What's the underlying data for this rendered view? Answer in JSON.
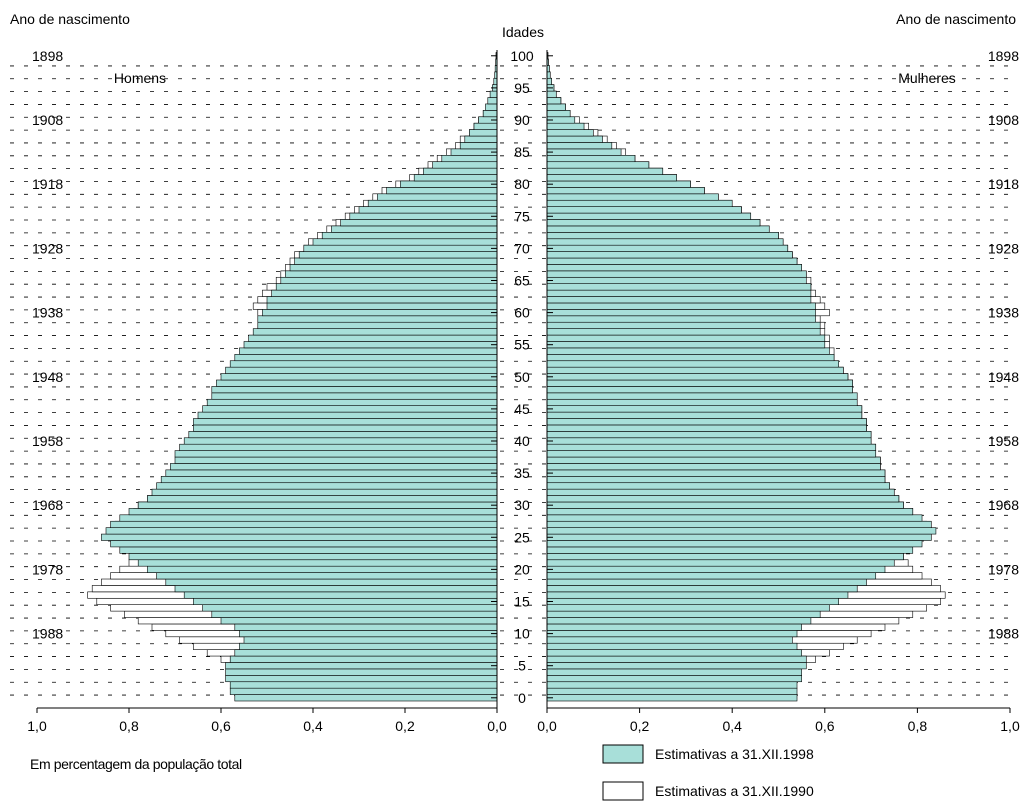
{
  "chart_data": {
    "type": "bar",
    "orientation": "horizontal",
    "layout": "population-pyramid",
    "title": "",
    "left_title": "Ano de nascimento",
    "right_title": "Ano de nascimento",
    "center_title": "Idades",
    "left_group_label": "Homens",
    "right_group_label": "Mulheres",
    "footnote": "Em percentagem da população total",
    "age_ticks": [
      0,
      5,
      10,
      15,
      20,
      25,
      30,
      35,
      40,
      45,
      50,
      55,
      60,
      65,
      70,
      75,
      80,
      85,
      90,
      95,
      100
    ],
    "birth_year_ticks": [
      {
        "year": "1898",
        "age": 100
      },
      {
        "year": "1908",
        "age": 90
      },
      {
        "year": "1918",
        "age": 80
      },
      {
        "year": "1928",
        "age": 70
      },
      {
        "year": "1938",
        "age": 60
      },
      {
        "year": "1948",
        "age": 50
      },
      {
        "year": "1958",
        "age": 40
      },
      {
        "year": "1968",
        "age": 30
      },
      {
        "year": "1978",
        "age": 20
      },
      {
        "year": "1988",
        "age": 10
      }
    ],
    "x_tick_labels": [
      "1,0",
      "0,8",
      "0,6",
      "0,4",
      "0,2",
      "0,0"
    ],
    "x_tick_labels_right": [
      "0,0",
      "0,2",
      "0,4",
      "0,6",
      "0,8",
      "1,0"
    ],
    "xlim": [
      0,
      1.0
    ],
    "ylim": [
      0,
      100
    ],
    "grid": "dashed horizontal lines every 2 years of age",
    "legend": {
      "placement": "bottom-right",
      "entries": [
        {
          "label": "Estimativas a 31.XII.1998",
          "color": "#a8dfd9"
        },
        {
          "label": "Estimativas a 31.XII.1990",
          "color": "#ffffff"
        }
      ]
    },
    "series": [
      {
        "name": "Estimativas a 31.XII.1998",
        "side": "Homens",
        "color": "#a8dfd9",
        "values": [
          0.57,
          0.58,
          0.58,
          0.59,
          0.59,
          0.59,
          0.58,
          0.57,
          0.56,
          0.55,
          0.56,
          0.57,
          0.6,
          0.62,
          0.64,
          0.66,
          0.68,
          0.7,
          0.72,
          0.74,
          0.76,
          0.78,
          0.8,
          0.82,
          0.84,
          0.86,
          0.85,
          0.84,
          0.82,
          0.8,
          0.78,
          0.76,
          0.75,
          0.74,
          0.73,
          0.72,
          0.71,
          0.7,
          0.7,
          0.69,
          0.68,
          0.67,
          0.66,
          0.66,
          0.65,
          0.64,
          0.63,
          0.62,
          0.62,
          0.61,
          0.6,
          0.59,
          0.58,
          0.57,
          0.56,
          0.55,
          0.54,
          0.53,
          0.52,
          0.52,
          0.51,
          0.5,
          0.5,
          0.49,
          0.48,
          0.47,
          0.46,
          0.45,
          0.44,
          0.43,
          0.42,
          0.4,
          0.38,
          0.36,
          0.34,
          0.32,
          0.3,
          0.28,
          0.26,
          0.24,
          0.21,
          0.18,
          0.16,
          0.14,
          0.12,
          0.1,
          0.08,
          0.07,
          0.06,
          0.05,
          0.04,
          0.03,
          0.025,
          0.02,
          0.015,
          0.01,
          0.007,
          0.005,
          0.004,
          0.003,
          0.002
        ]
      },
      {
        "name": "Estimativas a 31.XII.1990",
        "side": "Homens",
        "color": "#ffffff",
        "values": [
          0,
          0,
          0,
          0,
          0,
          0,
          0.6,
          0.63,
          0.66,
          0.69,
          0.72,
          0.75,
          0.78,
          0.81,
          0.84,
          0.87,
          0.89,
          0.88,
          0.86,
          0.84,
          0.82,
          0.8,
          0.78,
          0.78,
          0.8,
          0.82,
          0.84,
          0.83,
          0.81,
          0.79,
          0.78,
          0.76,
          0.74,
          0.73,
          0.72,
          0.7,
          0.7,
          0.69,
          0.68,
          0.67,
          0.66,
          0.66,
          0.65,
          0.64,
          0.63,
          0.62,
          0.62,
          0.61,
          0.6,
          0.59,
          0.58,
          0.57,
          0.56,
          0.55,
          0.54,
          0.53,
          0.53,
          0.52,
          0.51,
          0.51,
          0.52,
          0.53,
          0.52,
          0.51,
          0.5,
          0.48,
          0.47,
          0.46,
          0.45,
          0.44,
          0.42,
          0.41,
          0.39,
          0.37,
          0.35,
          0.33,
          0.31,
          0.29,
          0.27,
          0.25,
          0.22,
          0.19,
          0.17,
          0.15,
          0.13,
          0.11,
          0.09,
          0.08,
          0.06,
          0.05,
          0.04,
          0.03,
          0.02,
          0.015,
          0.01,
          0.008,
          0.006,
          0.004,
          0.003,
          0.002,
          0.002
        ]
      },
      {
        "name": "Estimativas a 31.XII.1998",
        "side": "Mulheres",
        "color": "#a8dfd9",
        "values": [
          0.54,
          0.54,
          0.54,
          0.55,
          0.55,
          0.56,
          0.56,
          0.55,
          0.54,
          0.53,
          0.54,
          0.55,
          0.57,
          0.59,
          0.61,
          0.63,
          0.65,
          0.67,
          0.69,
          0.71,
          0.73,
          0.75,
          0.77,
          0.79,
          0.81,
          0.83,
          0.84,
          0.83,
          0.81,
          0.79,
          0.77,
          0.76,
          0.75,
          0.74,
          0.73,
          0.73,
          0.72,
          0.72,
          0.71,
          0.71,
          0.7,
          0.7,
          0.69,
          0.69,
          0.68,
          0.68,
          0.67,
          0.67,
          0.66,
          0.66,
          0.65,
          0.64,
          0.63,
          0.62,
          0.61,
          0.6,
          0.6,
          0.59,
          0.59,
          0.58,
          0.58,
          0.58,
          0.57,
          0.57,
          0.57,
          0.56,
          0.56,
          0.55,
          0.54,
          0.53,
          0.52,
          0.51,
          0.5,
          0.48,
          0.46,
          0.44,
          0.42,
          0.4,
          0.37,
          0.34,
          0.31,
          0.28,
          0.25,
          0.22,
          0.19,
          0.16,
          0.14,
          0.12,
          0.1,
          0.08,
          0.06,
          0.05,
          0.04,
          0.03,
          0.02,
          0.015,
          0.01,
          0.007,
          0.005,
          0.003,
          0.002
        ]
      },
      {
        "name": "Estimativas a 31.XII.1990",
        "side": "Mulheres",
        "color": "#ffffff",
        "values": [
          0,
          0,
          0,
          0,
          0,
          0,
          0.58,
          0.61,
          0.64,
          0.67,
          0.7,
          0.73,
          0.76,
          0.79,
          0.82,
          0.85,
          0.86,
          0.85,
          0.83,
          0.81,
          0.79,
          0.78,
          0.77,
          0.77,
          0.79,
          0.81,
          0.83,
          0.82,
          0.8,
          0.79,
          0.77,
          0.76,
          0.75,
          0.74,
          0.73,
          0.73,
          0.72,
          0.72,
          0.71,
          0.71,
          0.7,
          0.7,
          0.69,
          0.69,
          0.68,
          0.68,
          0.67,
          0.67,
          0.66,
          0.66,
          0.65,
          0.64,
          0.63,
          0.62,
          0.62,
          0.61,
          0.61,
          0.6,
          0.6,
          0.59,
          0.61,
          0.6,
          0.59,
          0.58,
          0.57,
          0.57,
          0.56,
          0.55,
          0.54,
          0.53,
          0.52,
          0.51,
          0.5,
          0.48,
          0.46,
          0.44,
          0.42,
          0.4,
          0.37,
          0.34,
          0.31,
          0.28,
          0.25,
          0.22,
          0.19,
          0.17,
          0.15,
          0.13,
          0.11,
          0.09,
          0.07,
          0.05,
          0.04,
          0.03,
          0.02,
          0.015,
          0.01,
          0.007,
          0.005,
          0.003,
          0.002
        ]
      }
    ]
  }
}
